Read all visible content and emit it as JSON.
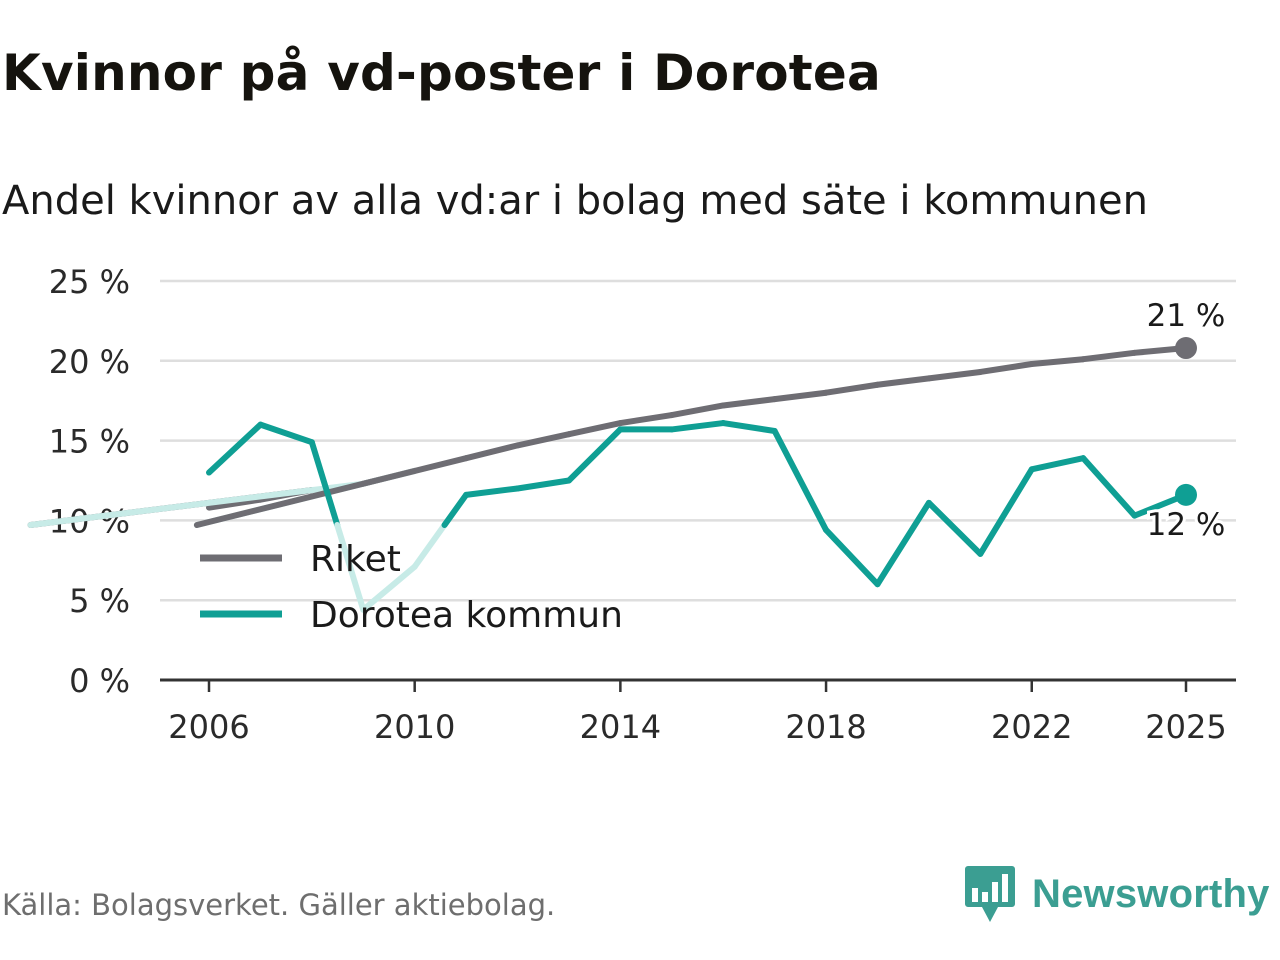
{
  "chart_data": {
    "type": "line",
    "title": "Kvinnor på vd-poster i Dorotea",
    "subtitle": "Andel kvinnor av alla vd:ar i bolag med säte i kommunen",
    "x": [
      2006,
      2007,
      2008,
      2009,
      2010,
      2011,
      2012,
      2013,
      2014,
      2015,
      2016,
      2017,
      2018,
      2019,
      2020,
      2021,
      2022,
      2023,
      2024,
      2025
    ],
    "series": [
      {
        "name": "Riket",
        "color": "#6e6d73",
        "values": [
          10.8,
          11.3,
          11.9,
          12.3,
          13.1,
          13.9,
          14.7,
          15.4,
          16.1,
          16.6,
          17.2,
          17.6,
          18.0,
          18.5,
          18.9,
          19.3,
          19.8,
          20.1,
          20.5,
          20.8
        ],
        "end_label": "21 %"
      },
      {
        "name": "Dorotea kommun",
        "color": "#0f9f94",
        "values": [
          13.0,
          16.0,
          14.9,
          4.4,
          7.1,
          11.6,
          12.0,
          12.5,
          15.7,
          15.7,
          16.1,
          15.6,
          9.4,
          6.0,
          11.1,
          7.9,
          13.2,
          13.9,
          10.3,
          11.6
        ],
        "end_label": "12 %"
      }
    ],
    "xticks": [
      2006,
      2010,
      2014,
      2018,
      2022,
      2025
    ],
    "yticks": [
      0,
      5,
      10,
      15,
      20,
      25
    ],
    "ytick_labels": [
      "0 %",
      "5 %",
      "10 %",
      "15 %",
      "20 %",
      "25 %"
    ],
    "ylim": [
      0,
      25
    ],
    "xlim": [
      2006,
      2025
    ],
    "grid": true,
    "legend_position": "bottom-left"
  },
  "footer": {
    "source": "Källa: Bolagsverket. Gäller aktiebolag.",
    "brand": "Newsworthy",
    "brand_icon": "newsworthy-logo-icon"
  }
}
